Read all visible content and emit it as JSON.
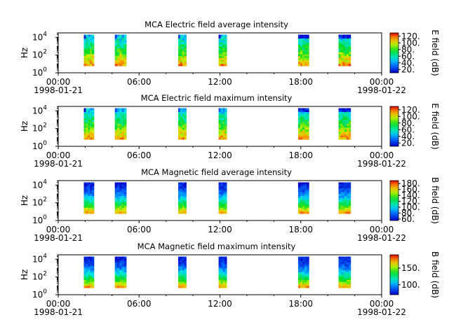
{
  "chart_data": [
    {
      "type": "heatmap",
      "title": "MCA  Electric field average intensity",
      "ylabel": "Hz",
      "x_ticks": [
        "00:00",
        "06:00",
        "12:00",
        "18:00",
        "00:00"
      ],
      "x_dates": [
        "1998-01-21",
        "1998-01-22"
      ],
      "xlim": [
        "1998-01-21T00:00",
        "1998-01-22T00:00"
      ],
      "y_ticks": [
        {
          "base": "10",
          "exp": "0"
        },
        {
          "base": "10",
          "exp": "2"
        },
        {
          "base": "10",
          "exp": "4"
        }
      ],
      "y_scale": "log",
      "ylim": [
        1,
        31623
      ],
      "colorbar": {
        "label": "E field (dB)",
        "ticks": [
          "20.",
          "40.",
          "60.",
          "80.",
          "100.",
          "120."
        ],
        "range": [
          10,
          130
        ],
        "colormap": "rainbow"
      },
      "segments_hours": [
        [
          1.9,
          2.65
        ],
        [
          4.2,
          5.05
        ],
        [
          8.9,
          9.5
        ],
        [
          11.9,
          12.5
        ],
        [
          17.8,
          18.6
        ],
        [
          20.8,
          21.7
        ]
      ],
      "band_hz": [
        6,
        20000
      ],
      "intensity_profile": "low at high frequency (blue), peaking at low frequency (yellow-red)"
    },
    {
      "type": "heatmap",
      "title": "MCA  Electric field maximum intensity",
      "ylabel": "Hz",
      "x_ticks": [
        "00:00",
        "06:00",
        "12:00",
        "18:00",
        "00:00"
      ],
      "x_dates": [
        "1998-01-21",
        "1998-01-22"
      ],
      "xlim": [
        "1998-01-21T00:00",
        "1998-01-22T00:00"
      ],
      "y_ticks": [
        {
          "base": "10",
          "exp": "0"
        },
        {
          "base": "10",
          "exp": "2"
        },
        {
          "base": "10",
          "exp": "4"
        }
      ],
      "y_scale": "log",
      "ylim": [
        1,
        31623
      ],
      "colorbar": {
        "label": "E field (dB)",
        "ticks": [
          "20.",
          "40.",
          "60.",
          "80.",
          "100.",
          "120."
        ],
        "range": [
          10,
          130
        ],
        "colormap": "rainbow"
      },
      "segments_hours": [
        [
          1.9,
          2.65
        ],
        [
          4.2,
          5.05
        ],
        [
          8.9,
          9.5
        ],
        [
          11.9,
          12.5
        ],
        [
          17.8,
          18.6
        ],
        [
          20.8,
          21.7
        ]
      ],
      "band_hz": [
        6,
        20000
      ],
      "intensity_profile": "low at high frequency (blue), peaking at low frequency (yellow-red)"
    },
    {
      "type": "heatmap",
      "title": "MCA  Magnetic field average intensity",
      "ylabel": "Hz",
      "x_ticks": [
        "00:00",
        "06:00",
        "12:00",
        "18:00",
        "00:00"
      ],
      "x_dates": [
        "1998-01-21",
        "1998-01-22"
      ],
      "xlim": [
        "1998-01-21T00:00",
        "1998-01-22T00:00"
      ],
      "y_ticks": [
        {
          "base": "10",
          "exp": "0"
        },
        {
          "base": "10",
          "exp": "2"
        },
        {
          "base": "10",
          "exp": "4"
        }
      ],
      "y_scale": "log",
      "ylim": [
        1,
        31623
      ],
      "colorbar": {
        "label": "B field (dB)",
        "ticks": [
          "60.",
          "80.",
          "100.",
          "120.",
          "140.",
          "160.",
          "180."
        ],
        "range": [
          55,
          190
        ],
        "colormap": "rainbow"
      },
      "segments_hours": [
        [
          1.9,
          2.65
        ],
        [
          4.2,
          5.05
        ],
        [
          8.9,
          9.5
        ],
        [
          11.9,
          12.5
        ],
        [
          17.8,
          18.6
        ],
        [
          20.8,
          21.7
        ]
      ],
      "band_hz": [
        6,
        20000
      ],
      "intensity_profile": "blue at high frequency, green mid band, yellow-red at lowest frequencies"
    },
    {
      "type": "heatmap",
      "title": "MCA  Magnetic field maximum intensity",
      "ylabel": "Hz",
      "x_ticks": [
        "00:00",
        "06:00",
        "12:00",
        "18:00",
        "00:00"
      ],
      "x_dates": [
        "1998-01-21",
        "1998-01-22"
      ],
      "xlim": [
        "1998-01-21T00:00",
        "1998-01-22T00:00"
      ],
      "y_ticks": [
        {
          "base": "10",
          "exp": "0"
        },
        {
          "base": "10",
          "exp": "2"
        },
        {
          "base": "10",
          "exp": "4"
        }
      ],
      "y_scale": "log",
      "ylim": [
        1,
        31623
      ],
      "colorbar": {
        "label": "B field (dB)",
        "ticks": [
          "100.",
          "150."
        ],
        "range": [
          70,
          190
        ],
        "colormap": "rainbow"
      },
      "segments_hours": [
        [
          1.9,
          2.65
        ],
        [
          4.2,
          5.05
        ],
        [
          8.9,
          9.5
        ],
        [
          11.9,
          12.5
        ],
        [
          17.8,
          18.6
        ],
        [
          20.8,
          21.7
        ]
      ],
      "band_hz": [
        6,
        20000
      ],
      "intensity_profile": "blue at high frequency, green mid band, yellow-red at lowest frequencies"
    }
  ]
}
